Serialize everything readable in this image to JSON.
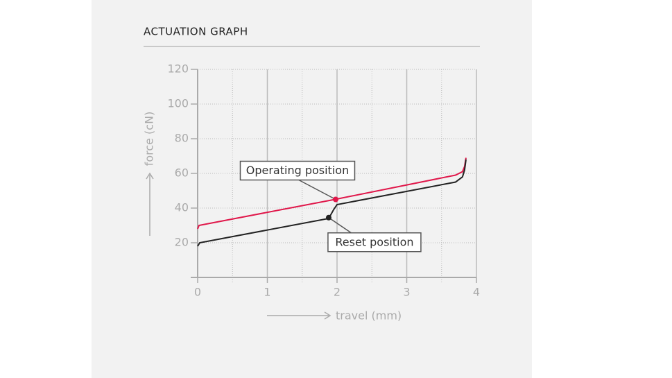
{
  "chart_data": {
    "type": "line",
    "title": "ACTUATION GRAPH",
    "xlabel": "travel (mm)",
    "ylabel": "force (cN)",
    "xlim": [
      0,
      4
    ],
    "xticks": [
      0,
      1,
      2,
      3,
      4
    ],
    "ylim": [
      0,
      120
    ],
    "yticks": [
      20,
      40,
      60,
      80,
      100,
      120
    ],
    "grid": true,
    "series": [
      {
        "color": "#e0174a",
        "x": [
          0,
          0.02,
          1.97,
          3.7,
          3.8,
          3.83,
          3.85
        ],
        "values": [
          28,
          30,
          45,
          59,
          61,
          64,
          69
        ]
      },
      {
        "color": "#222222",
        "x": [
          0,
          0.03,
          1.88,
          1.95,
          2.0,
          3.7,
          3.8,
          3.83,
          3.85
        ],
        "values": [
          18,
          20,
          34,
          39,
          42,
          55,
          58,
          62,
          68
        ]
      }
    ],
    "annotations": [
      {
        "text": "Operating position",
        "x": 1.98,
        "y": 45,
        "color": "#e0174a"
      },
      {
        "text": "Reset position",
        "x": 1.88,
        "y": 34.5,
        "color": "#222222"
      }
    ]
  }
}
